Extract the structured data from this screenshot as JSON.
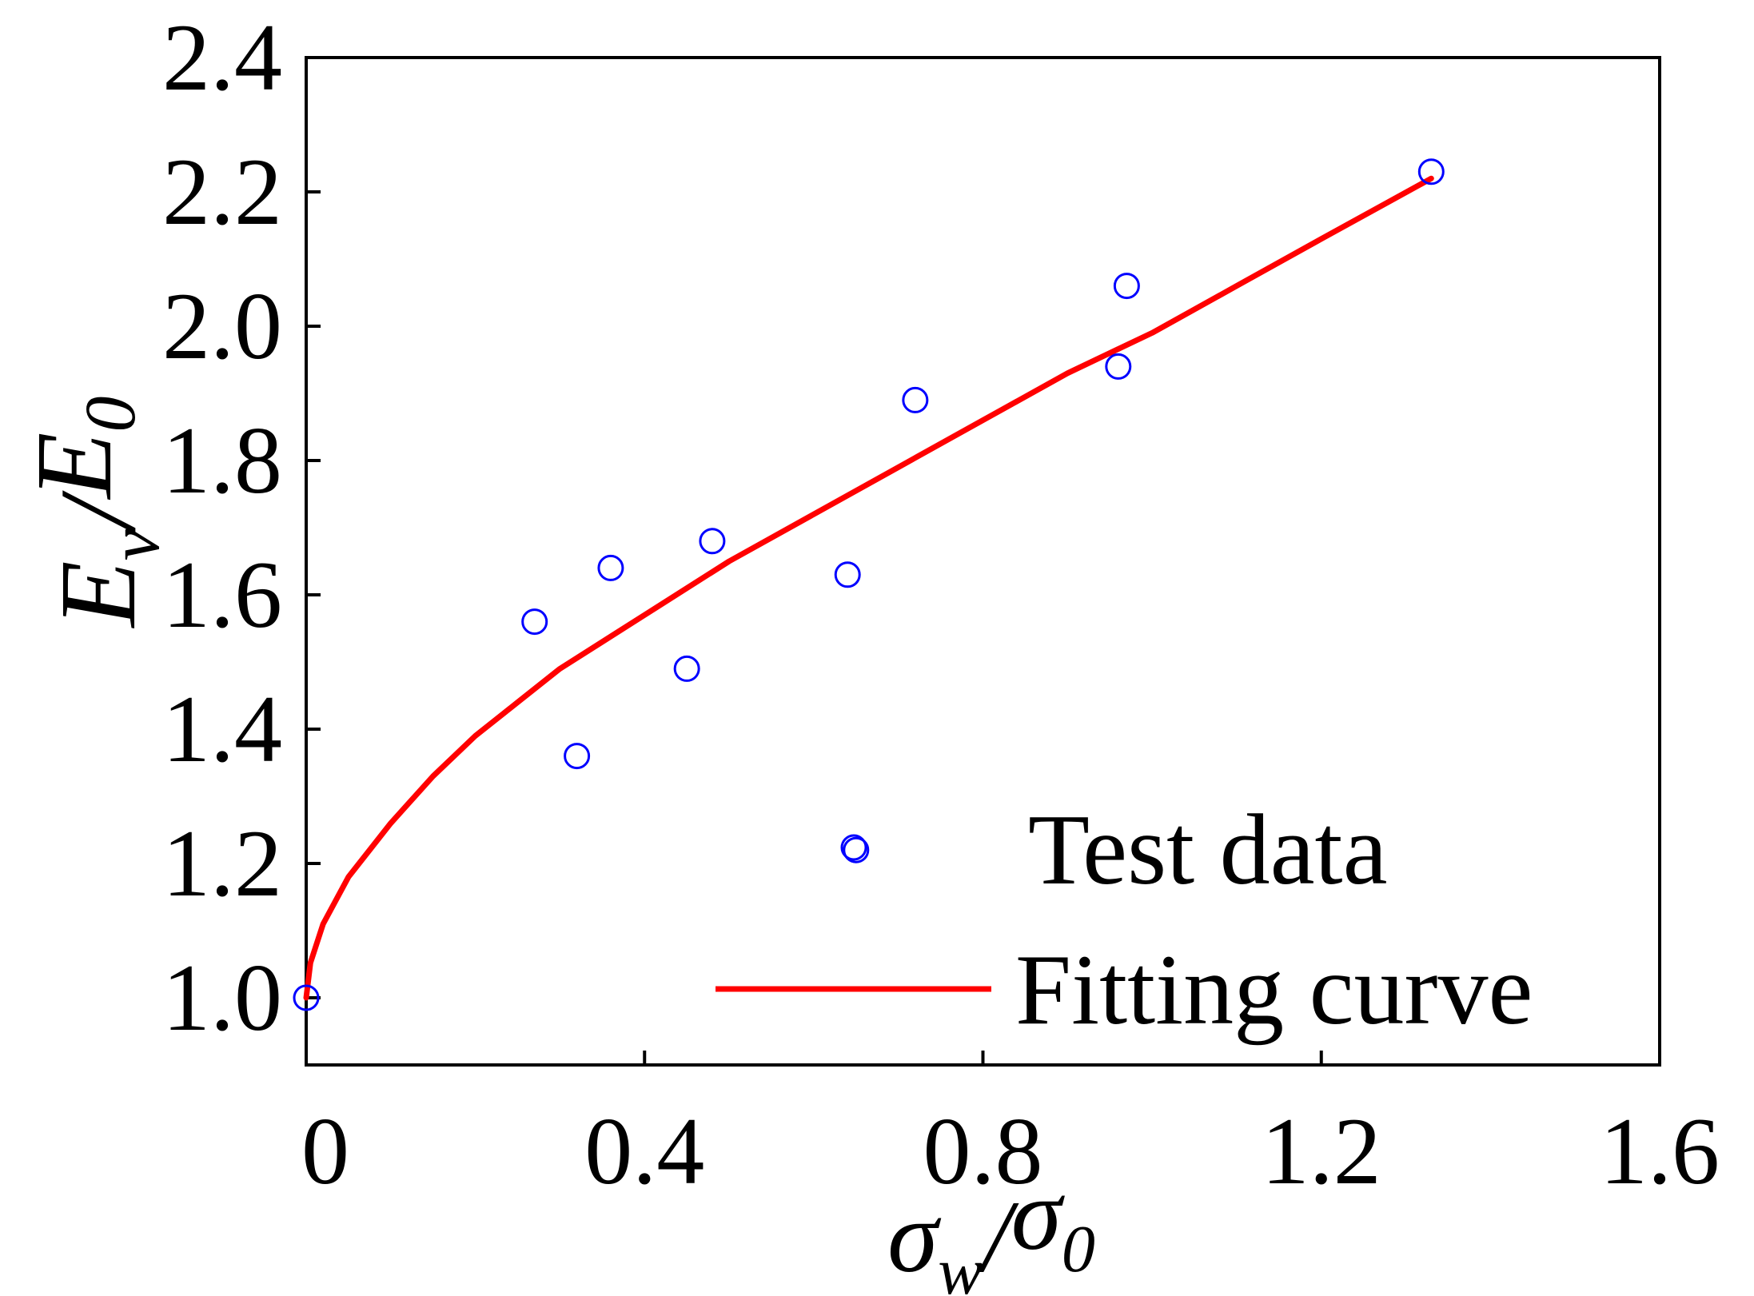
{
  "chart_data": {
    "type": "scatter",
    "title": "",
    "xlabel": {
      "main": "σ",
      "main_sub": "w",
      "sep": "/",
      "den": "σ",
      "den_sub": "0"
    },
    "ylabel": {
      "main": "E",
      "main_sub": "v",
      "sep": "/",
      "den": "E",
      "den_sub": "0"
    },
    "xlim": [
      0,
      1.6
    ],
    "ylim": [
      0.9,
      2.4
    ],
    "xticks": [
      0,
      0.4,
      0.8,
      1.2,
      1.6
    ],
    "xtick_labels": [
      "0",
      "0.4",
      "0.8",
      "1.2",
      "1.6"
    ],
    "yticks": [
      1.0,
      1.2,
      1.4,
      1.6,
      1.8,
      2.0,
      2.2,
      2.4
    ],
    "ytick_labels": [
      "1.0",
      "1.2",
      "1.4",
      "1.6",
      "1.8",
      "2.0",
      "2.2",
      "2.4"
    ],
    "grid": false,
    "legend_position": "bottom-right",
    "series": [
      {
        "name": "Test data",
        "kind": "scatter",
        "marker": "open-circle",
        "color": "#0000ff",
        "points": [
          {
            "x": 0.0,
            "y": 1.0
          },
          {
            "x": 0.27,
            "y": 1.56
          },
          {
            "x": 0.32,
            "y": 1.36
          },
          {
            "x": 0.36,
            "y": 1.64
          },
          {
            "x": 0.45,
            "y": 1.49
          },
          {
            "x": 0.48,
            "y": 1.68
          },
          {
            "x": 0.64,
            "y": 1.63
          },
          {
            "x": 0.65,
            "y": 1.22
          },
          {
            "x": 0.72,
            "y": 1.89
          },
          {
            "x": 0.96,
            "y": 1.94
          },
          {
            "x": 0.97,
            "y": 2.06
          },
          {
            "x": 1.33,
            "y": 2.23
          }
        ]
      },
      {
        "name": "Fitting curve",
        "kind": "line",
        "color": "#ff0000",
        "points": [
          {
            "x": 0.0,
            "y": 1.0
          },
          {
            "x": 0.005,
            "y": 1.052
          },
          {
            "x": 0.02,
            "y": 1.11
          },
          {
            "x": 0.05,
            "y": 1.18
          },
          {
            "x": 0.1,
            "y": 1.26
          },
          {
            "x": 0.15,
            "y": 1.33
          },
          {
            "x": 0.2,
            "y": 1.39
          },
          {
            "x": 0.25,
            "y": 1.44
          },
          {
            "x": 0.3,
            "y": 1.49
          },
          {
            "x": 0.4,
            "y": 1.57
          },
          {
            "x": 0.5,
            "y": 1.65
          },
          {
            "x": 0.6,
            "y": 1.72
          },
          {
            "x": 0.7,
            "y": 1.79
          },
          {
            "x": 0.8,
            "y": 1.86
          },
          {
            "x": 0.9,
            "y": 1.93
          },
          {
            "x": 1.0,
            "y": 1.99
          },
          {
            "x": 1.1,
            "y": 2.06
          },
          {
            "x": 1.2,
            "y": 2.13
          },
          {
            "x": 1.33,
            "y": 2.22
          }
        ]
      }
    ]
  }
}
